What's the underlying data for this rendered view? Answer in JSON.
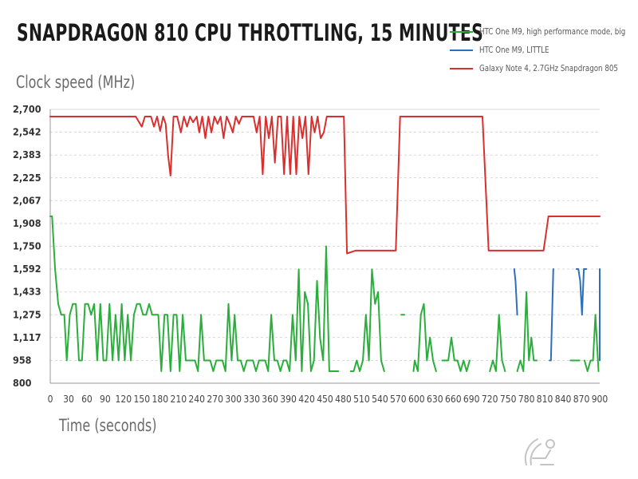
{
  "chart_data": {
    "type": "line",
    "title": "Snapdragon 810 CPU Throttling, 15 Minutes",
    "xlabel": "Time (seconds)",
    "ylabel": "Clock speed (MHz)",
    "xlim": [
      0,
      900
    ],
    "ylim": [
      800,
      2700
    ],
    "x_ticks": [
      "0",
      "30",
      "60",
      "90",
      "120",
      "150",
      "180",
      "210",
      "240",
      "270",
      "300",
      "330",
      "360",
      "390",
      "420",
      "450",
      "480",
      "510",
      "540",
      "570",
      "600",
      "630",
      "660",
      "690",
      "720",
      "750",
      "780",
      "810",
      "840",
      "870",
      "900"
    ],
    "y_ticks": [
      "800",
      "958",
      "1,117",
      "1,275",
      "1,433",
      "1,592",
      "1,750",
      "1,908",
      "2,067",
      "2,225",
      "2,383",
      "2,542",
      "2,700"
    ],
    "grid": "horizontal dashed",
    "legend_position": "top-right",
    "series": [
      {
        "name": "HTC One M9, high performance mode, big",
        "color": "#2bae3b",
        "points": [
          [
            0,
            1958
          ],
          [
            3,
            1958
          ],
          [
            8,
            1590
          ],
          [
            13,
            1350
          ],
          [
            18,
            1275
          ],
          [
            23,
            1275
          ],
          [
            27,
            958
          ],
          [
            32,
            1275
          ],
          [
            37,
            1350
          ],
          [
            42,
            1350
          ],
          [
            47,
            958
          ],
          [
            52,
            958
          ],
          [
            57,
            1350
          ],
          [
            62,
            1350
          ],
          [
            67,
            1275
          ],
          [
            72,
            1350
          ],
          [
            77,
            958
          ],
          [
            82,
            1350
          ],
          [
            87,
            958
          ],
          [
            92,
            958
          ],
          [
            97,
            1350
          ],
          [
            102,
            958
          ],
          [
            107,
            1275
          ],
          [
            112,
            958
          ],
          [
            117,
            1350
          ],
          [
            122,
            958
          ],
          [
            127,
            1275
          ],
          [
            132,
            958
          ],
          [
            137,
            1275
          ],
          [
            142,
            1350
          ],
          [
            147,
            1350
          ],
          [
            152,
            1275
          ],
          [
            157,
            1275
          ],
          [
            162,
            1350
          ],
          [
            167,
            1275
          ],
          [
            172,
            1275
          ],
          [
            177,
            1275
          ],
          [
            182,
            883
          ],
          [
            187,
            1275
          ],
          [
            192,
            1275
          ],
          [
            197,
            883
          ],
          [
            202,
            1275
          ],
          [
            207,
            1275
          ],
          [
            212,
            883
          ],
          [
            217,
            1275
          ],
          [
            222,
            958
          ],
          [
            227,
            958
          ],
          [
            232,
            958
          ],
          [
            237,
            958
          ],
          [
            242,
            883
          ],
          [
            247,
            1275
          ],
          [
            252,
            958
          ],
          [
            257,
            958
          ],
          [
            262,
            958
          ],
          [
            267,
            883
          ],
          [
            272,
            958
          ],
          [
            277,
            958
          ],
          [
            282,
            958
          ],
          [
            287,
            883
          ],
          [
            292,
            1350
          ],
          [
            297,
            958
          ],
          [
            302,
            1275
          ],
          [
            307,
            958
          ],
          [
            312,
            958
          ],
          [
            317,
            883
          ],
          [
            322,
            958
          ],
          [
            327,
            958
          ],
          [
            332,
            958
          ],
          [
            337,
            883
          ],
          [
            342,
            958
          ],
          [
            347,
            958
          ],
          [
            352,
            958
          ],
          [
            357,
            883
          ],
          [
            362,
            1275
          ],
          [
            367,
            958
          ],
          [
            372,
            958
          ],
          [
            377,
            883
          ],
          [
            382,
            958
          ],
          [
            387,
            958
          ],
          [
            392,
            883
          ],
          [
            397,
            1275
          ],
          [
            402,
            958
          ],
          [
            407,
            1590
          ],
          [
            412,
            883
          ],
          [
            417,
            1433
          ],
          [
            422,
            1350
          ],
          [
            427,
            883
          ],
          [
            432,
            958
          ],
          [
            437,
            1510
          ],
          [
            442,
            1110
          ],
          [
            447,
            958
          ],
          [
            452,
            1750
          ],
          [
            457,
            883
          ],
          [
            462,
            883
          ],
          [
            467,
            883
          ],
          [
            472,
            883
          ],
          [
            475,
            null
          ],
          [
            492,
            883
          ],
          [
            497,
            883
          ],
          [
            502,
            958
          ],
          [
            507,
            883
          ],
          [
            512,
            958
          ],
          [
            517,
            1275
          ],
          [
            522,
            958
          ],
          [
            527,
            1590
          ],
          [
            532,
            1350
          ],
          [
            537,
            1433
          ],
          [
            542,
            958
          ],
          [
            547,
            883
          ],
          [
            549,
            null
          ],
          [
            575,
            1275
          ],
          [
            580,
            1275
          ],
          [
            585,
            null
          ],
          [
            595,
            883
          ],
          [
            597,
            958
          ],
          [
            602,
            883
          ],
          [
            607,
            1275
          ],
          [
            612,
            1350
          ],
          [
            617,
            958
          ],
          [
            622,
            1117
          ],
          [
            627,
            958
          ],
          [
            632,
            883
          ],
          [
            634,
            null
          ],
          [
            642,
            958
          ],
          [
            647,
            958
          ],
          [
            652,
            958
          ],
          [
            657,
            1117
          ],
          [
            662,
            958
          ],
          [
            667,
            958
          ],
          [
            672,
            883
          ],
          [
            677,
            958
          ],
          [
            682,
            883
          ],
          [
            687,
            958
          ],
          [
            689,
            null
          ],
          [
            720,
            883
          ],
          [
            725,
            958
          ],
          [
            730,
            883
          ],
          [
            735,
            1275
          ],
          [
            740,
            958
          ],
          [
            745,
            883
          ],
          [
            747,
            null
          ],
          [
            765,
            883
          ],
          [
            770,
            958
          ],
          [
            775,
            883
          ],
          [
            780,
            1433
          ],
          [
            784,
            958
          ],
          [
            788,
            1117
          ],
          [
            792,
            958
          ],
          [
            797,
            958
          ],
          [
            800,
            null
          ],
          [
            852,
            958
          ],
          [
            857,
            958
          ],
          [
            862,
            958
          ],
          [
            867,
            958
          ],
          [
            869,
            null
          ],
          [
            875,
            958
          ],
          [
            880,
            883
          ],
          [
            885,
            958
          ],
          [
            889,
            958
          ],
          [
            893,
            1275
          ],
          [
            898,
            883
          ],
          [
            900,
            null
          ]
        ]
      },
      {
        "name": "HTC One M9, LITTLE",
        "color": "#2d6fbd",
        "points": [
          [
            760,
            1592
          ],
          [
            762,
            1510
          ],
          [
            765,
            1275
          ],
          [
            768,
            null
          ],
          [
            818,
            958
          ],
          [
            820,
            958
          ],
          [
            824,
            1592
          ],
          [
            826,
            null
          ],
          [
            862,
            1592
          ],
          [
            865,
            1592
          ],
          [
            868,
            1510
          ],
          [
            871,
            1275
          ],
          [
            874,
            1592
          ],
          [
            878,
            1592
          ],
          [
            880,
            null
          ],
          [
            935,
            958
          ],
          [
            937,
            1275
          ],
          [
            939,
            1592
          ],
          [
            940,
            null
          ]
        ]
      },
      {
        "name": "Galaxy Note 4, 2.7GHz Snapdragon 805",
        "color": "#d8302f",
        "points": [
          [
            0,
            2650
          ],
          [
            70,
            2650
          ],
          [
            120,
            2650
          ],
          [
            140,
            2650
          ],
          [
            150,
            2580
          ],
          [
            155,
            2650
          ],
          [
            165,
            2650
          ],
          [
            170,
            2580
          ],
          [
            175,
            2650
          ],
          [
            180,
            2550
          ],
          [
            185,
            2650
          ],
          [
            189,
            2600
          ],
          [
            193,
            2380
          ],
          [
            197,
            2240
          ],
          [
            202,
            2650
          ],
          [
            208,
            2650
          ],
          [
            214,
            2540
          ],
          [
            219,
            2650
          ],
          [
            224,
            2580
          ],
          [
            229,
            2650
          ],
          [
            234,
            2610
          ],
          [
            240,
            2650
          ],
          [
            244,
            2540
          ],
          [
            249,
            2650
          ],
          [
            254,
            2500
          ],
          [
            259,
            2650
          ],
          [
            264,
            2540
          ],
          [
            269,
            2650
          ],
          [
            274,
            2600
          ],
          [
            279,
            2650
          ],
          [
            284,
            2500
          ],
          [
            289,
            2650
          ],
          [
            294,
            2600
          ],
          [
            299,
            2540
          ],
          [
            304,
            2650
          ],
          [
            309,
            2600
          ],
          [
            314,
            2650
          ],
          [
            318,
            2650
          ],
          [
            323,
            2650
          ],
          [
            328,
            2650
          ],
          [
            333,
            2650
          ],
          [
            338,
            2540
          ],
          [
            343,
            2650
          ],
          [
            348,
            2250
          ],
          [
            353,
            2650
          ],
          [
            358,
            2500
          ],
          [
            363,
            2650
          ],
          [
            368,
            2330
          ],
          [
            373,
            2650
          ],
          [
            378,
            2650
          ],
          [
            383,
            2250
          ],
          [
            388,
            2650
          ],
          [
            393,
            2250
          ],
          [
            398,
            2650
          ],
          [
            403,
            2250
          ],
          [
            408,
            2650
          ],
          [
            413,
            2500
          ],
          [
            418,
            2650
          ],
          [
            423,
            2250
          ],
          [
            428,
            2650
          ],
          [
            433,
            2540
          ],
          [
            438,
            2650
          ],
          [
            443,
            2500
          ],
          [
            448,
            2540
          ],
          [
            453,
            2650
          ],
          [
            458,
            2650
          ],
          [
            463,
            2650
          ],
          [
            468,
            2650
          ],
          [
            473,
            2650
          ],
          [
            481,
            2650
          ],
          [
            486,
            1700
          ],
          [
            500,
            1720
          ],
          [
            510,
            1720
          ],
          [
            520,
            1720
          ],
          [
            530,
            1720
          ],
          [
            540,
            1720
          ],
          [
            555,
            1720
          ],
          [
            566,
            1720
          ],
          [
            573,
            2650
          ],
          [
            580,
            2650
          ],
          [
            700,
            2650
          ],
          [
            708,
            2650
          ],
          [
            718,
            1720
          ],
          [
            730,
            1720
          ],
          [
            760,
            1720
          ],
          [
            790,
            1720
          ],
          [
            800,
            1720
          ],
          [
            808,
            1720
          ],
          [
            816,
            1958
          ],
          [
            900,
            1958
          ]
        ]
      }
    ]
  }
}
